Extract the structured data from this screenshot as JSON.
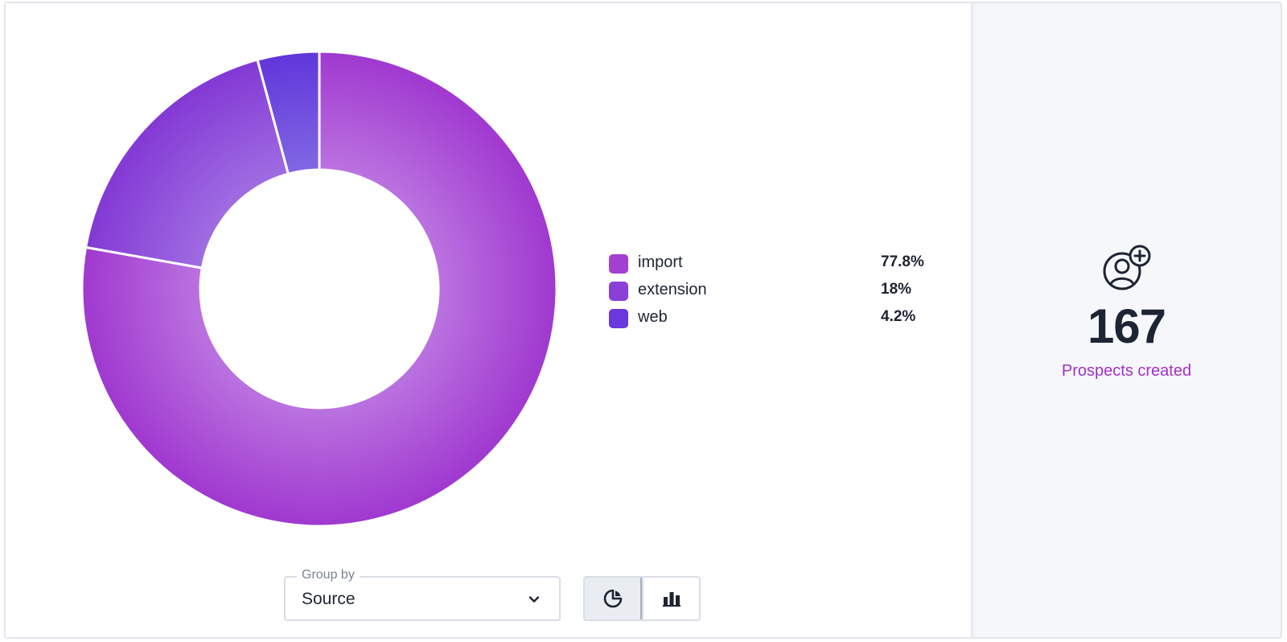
{
  "chart_data": {
    "type": "pie",
    "donut": true,
    "categories": [
      "import",
      "extension",
      "web"
    ],
    "values": [
      77.8,
      18,
      4.2
    ],
    "value_labels": [
      "77.8%",
      "18%",
      "4.2%"
    ],
    "colors": [
      "#a43fd2",
      "#8a40d8",
      "#6a38dc"
    ],
    "legend_placement": "right"
  },
  "legend": {
    "items": [
      {
        "label": "import",
        "value": "77.8%",
        "color": "#a43fd2"
      },
      {
        "label": "extension",
        "value": "18%",
        "color": "#8a40d8"
      },
      {
        "label": "web",
        "value": "4.2%",
        "color": "#6a38dc"
      }
    ]
  },
  "controls": {
    "group_by_label": "Group by",
    "group_by_value": "Source",
    "view_mode": "pie"
  },
  "summary": {
    "count": "167",
    "label": "Prospects created",
    "icon": "add-user-icon",
    "accent_color": "#a42fc8"
  }
}
